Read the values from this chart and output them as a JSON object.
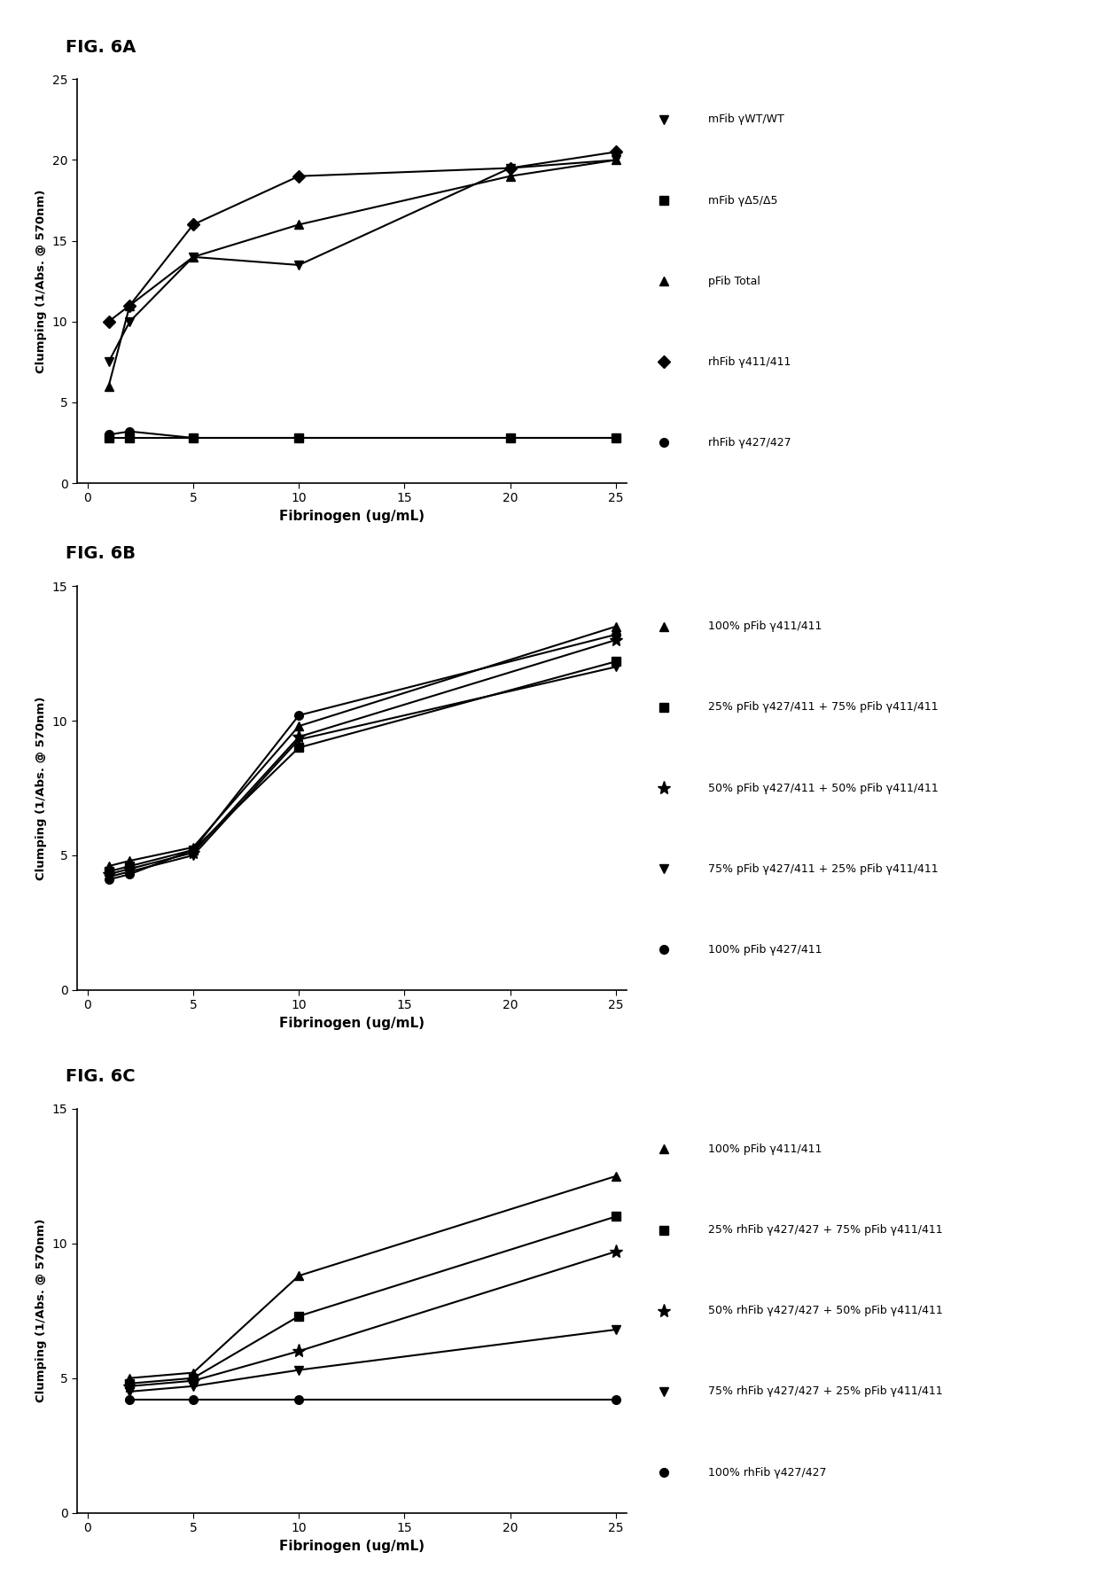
{
  "figA": {
    "title": "FIG. 6A",
    "xlabel": "Fibrinogen (ug/mL)",
    "ylabel": "Clumping (1/Abs. @ 570nm)",
    "xlim": [
      -0.5,
      25.5
    ],
    "ylim": [
      0,
      25
    ],
    "xticks": [
      0,
      5,
      10,
      15,
      20,
      25
    ],
    "yticks": [
      0,
      5,
      10,
      15,
      20,
      25
    ],
    "series": [
      {
        "label": "mFib γWT/WT",
        "x": [
          1,
          2,
          5,
          10,
          20,
          25
        ],
        "y": [
          7.5,
          10.0,
          14.0,
          13.5,
          19.5,
          20.0
        ],
        "marker": "v",
        "color": "black",
        "linewidth": 1.5,
        "markersize": 7
      },
      {
        "label": "mFib γΔ5/Δ5",
        "x": [
          1,
          2,
          5,
          10,
          20,
          25
        ],
        "y": [
          2.8,
          2.8,
          2.8,
          2.8,
          2.8,
          2.8
        ],
        "marker": "s",
        "color": "black",
        "linewidth": 1.5,
        "markersize": 7
      },
      {
        "label": "pFib Total",
        "x": [
          1,
          2,
          5,
          10,
          20,
          25
        ],
        "y": [
          6.0,
          11.0,
          14.0,
          16.0,
          19.0,
          20.0
        ],
        "marker": "^",
        "color": "black",
        "linewidth": 1.5,
        "markersize": 7
      },
      {
        "label": "rhFib γ411/411",
        "x": [
          1,
          2,
          5,
          10,
          20,
          25
        ],
        "y": [
          10.0,
          11.0,
          16.0,
          19.0,
          19.5,
          20.5
        ],
        "marker": "D",
        "color": "black",
        "linewidth": 1.5,
        "markersize": 7
      },
      {
        "label": "rhFib γ427/427",
        "x": [
          1,
          2,
          5,
          10,
          20,
          25
        ],
        "y": [
          3.0,
          3.2,
          2.8,
          2.8,
          2.8,
          2.8
        ],
        "marker": "o",
        "color": "black",
        "linewidth": 1.5,
        "markersize": 7
      }
    ],
    "legend_labels": [
      "mFib γWT/WT",
      "mFib γΔ5/Δ5",
      "pFib Total",
      "rhFib γ411/411",
      "rhFib γ427/427"
    ],
    "legend_markers": [
      "v",
      "s",
      "^",
      "D",
      "o"
    ],
    "legend_markersizes": [
      7,
      7,
      7,
      7,
      7
    ]
  },
  "figB": {
    "title": "FIG. 6B",
    "xlabel": "Fibrinogen (ug/mL)",
    "ylabel": "Clumping (1/Abs. @ 570nm)",
    "xlim": [
      -0.5,
      25.5
    ],
    "ylim": [
      0,
      15
    ],
    "xticks": [
      0,
      5,
      10,
      15,
      20,
      25
    ],
    "yticks": [
      0,
      5,
      10,
      15
    ],
    "series": [
      {
        "label": "100% pFib γ411/411",
        "x": [
          1,
          2,
          5,
          10,
          25
        ],
        "y": [
          4.6,
          4.8,
          5.3,
          9.8,
          13.5
        ],
        "marker": "^",
        "color": "black",
        "linewidth": 1.5,
        "markersize": 7
      },
      {
        "label": "25% pFib γ427/411 + 75% pFib γ411/411",
        "x": [
          1,
          2,
          5,
          10,
          25
        ],
        "y": [
          4.4,
          4.6,
          5.2,
          9.0,
          12.2
        ],
        "marker": "s",
        "color": "black",
        "linewidth": 1.5,
        "markersize": 7
      },
      {
        "label": "50% pFib γ427/411 + 50% pFib γ411/411",
        "x": [
          1,
          2,
          5,
          10,
          25
        ],
        "y": [
          4.3,
          4.5,
          5.1,
          9.4,
          13.0
        ],
        "marker": "*",
        "color": "black",
        "linewidth": 1.5,
        "markersize": 11
      },
      {
        "label": "75% pFib γ427/411 + 25% pFib γ411/411",
        "x": [
          1,
          2,
          5,
          10,
          25
        ],
        "y": [
          4.2,
          4.4,
          5.0,
          9.3,
          12.0
        ],
        "marker": "v",
        "color": "black",
        "linewidth": 1.5,
        "markersize": 7
      },
      {
        "label": "100% pFib γ427/411",
        "x": [
          1,
          2,
          5,
          10,
          25
        ],
        "y": [
          4.1,
          4.3,
          5.2,
          10.2,
          13.2
        ],
        "marker": "o",
        "color": "black",
        "linewidth": 1.5,
        "markersize": 7
      }
    ],
    "legend_labels": [
      "100% pFib γ411/411",
      "25% pFib γ427/411 + 75% pFib γ411/411",
      "50% pFib γ427/411 + 50% pFib γ411/411",
      "75% pFib γ427/411 + 25% pFib γ411/411",
      "100% pFib γ427/411"
    ],
    "legend_markers": [
      "^",
      "s",
      "*",
      "v",
      "o"
    ],
    "legend_markersizes": [
      7,
      7,
      11,
      7,
      7
    ]
  },
  "figC": {
    "title": "FIG. 6C",
    "xlabel": "Fibrinogen (ug/mL)",
    "ylabel": "Clumping (1/Abs. @ 570nm)",
    "xlim": [
      -0.5,
      25.5
    ],
    "ylim": [
      0,
      15
    ],
    "xticks": [
      0,
      5,
      10,
      15,
      20,
      25
    ],
    "yticks": [
      0,
      5,
      10,
      15
    ],
    "series": [
      {
        "label": "100% pFib γ411/411",
        "x": [
          2,
          5,
          10,
          25
        ],
        "y": [
          5.0,
          5.2,
          8.8,
          12.5
        ],
        "marker": "^",
        "color": "black",
        "linewidth": 1.5,
        "markersize": 7
      },
      {
        "label": "25% rhFib γ427/427 + 75% pFib γ411/411",
        "x": [
          2,
          5,
          10,
          25
        ],
        "y": [
          4.8,
          5.0,
          7.3,
          11.0
        ],
        "marker": "s",
        "color": "black",
        "linewidth": 1.5,
        "markersize": 7
      },
      {
        "label": "50% rhFib γ427/427 + 50% pFib γ411/411",
        "x": [
          2,
          5,
          10,
          25
        ],
        "y": [
          4.7,
          4.9,
          6.0,
          9.7
        ],
        "marker": "*",
        "color": "black",
        "linewidth": 1.5,
        "markersize": 11
      },
      {
        "label": "75% rhFib γ427/427 + 25% pFib γ411/411",
        "x": [
          2,
          5,
          10,
          25
        ],
        "y": [
          4.5,
          4.7,
          5.3,
          6.8
        ],
        "marker": "v",
        "color": "black",
        "linewidth": 1.5,
        "markersize": 7
      },
      {
        "label": "100% rhFib γ427/427",
        "x": [
          2,
          5,
          10,
          25
        ],
        "y": [
          4.2,
          4.2,
          4.2,
          4.2
        ],
        "marker": "o",
        "color": "black",
        "linewidth": 1.5,
        "markersize": 7
      }
    ],
    "legend_labels": [
      "100% pFib γ411/411",
      "25% rhFib γ427/427 + 75% pFib γ411/411",
      "50% rhFib γ427/427 + 50% pFib γ411/411",
      "75% rhFib γ427/427 + 25% pFib γ411/411",
      "100% rhFib γ427/427"
    ],
    "legend_markers": [
      "^",
      "s",
      "*",
      "v",
      "o"
    ],
    "legend_markersizes": [
      7,
      7,
      11,
      7,
      7
    ]
  },
  "bg_color": "#ffffff",
  "text_color": "#000000"
}
